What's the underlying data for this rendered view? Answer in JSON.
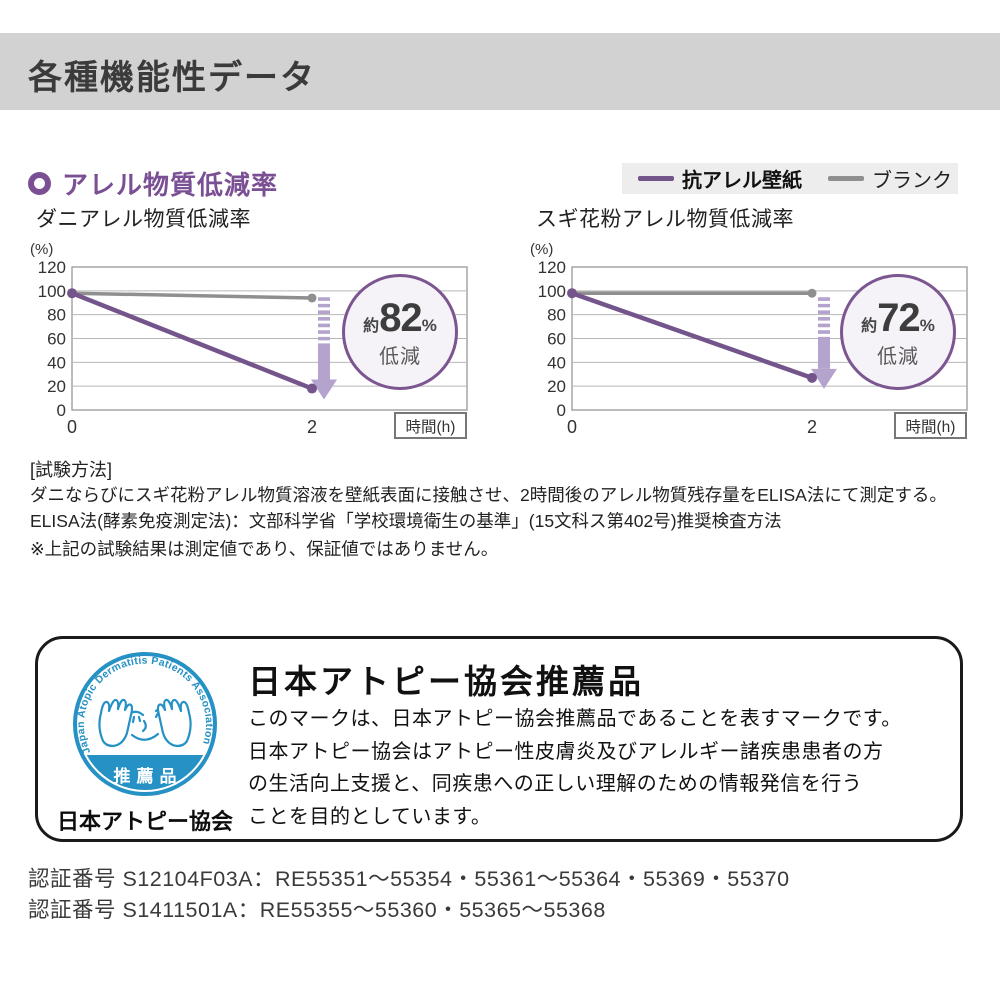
{
  "header": {
    "title": "各種機能性データ"
  },
  "section": {
    "title": "アレル物質低減率",
    "legend": {
      "items": [
        {
          "label": "抗アレル壁紙",
          "color": "#74558b"
        },
        {
          "label": "ブランク",
          "color": "#8f8f8f"
        }
      ]
    }
  },
  "chart_data": [
    {
      "type": "line",
      "title": "ダニアレル物質低減率",
      "ylabel": "(%)",
      "xlabel": "時間(h)",
      "ylim": [
        0,
        120
      ],
      "yticks": [
        120,
        100,
        80,
        60,
        40,
        20,
        0
      ],
      "xticks": [
        0,
        2
      ],
      "grid": true,
      "series": [
        {
          "name": "抗アレル壁紙",
          "color": "#74558b",
          "x": [
            0,
            2
          ],
          "values": [
            98,
            18
          ]
        },
        {
          "name": "ブランク",
          "color": "#8f8f8f",
          "x": [
            0,
            2
          ],
          "values": [
            98,
            94
          ]
        }
      ],
      "badge": {
        "prefix": "約",
        "value": "82",
        "unit": "%",
        "caption": "低減"
      }
    },
    {
      "type": "line",
      "title": "スギ花粉アレル物質低減率",
      "ylabel": "(%)",
      "xlabel": "時間(h)",
      "ylim": [
        0,
        120
      ],
      "yticks": [
        120,
        100,
        80,
        60,
        40,
        20,
        0
      ],
      "xticks": [
        0,
        2
      ],
      "grid": true,
      "series": [
        {
          "name": "抗アレル壁紙",
          "color": "#74558b",
          "x": [
            0,
            2
          ],
          "values": [
            98,
            27
          ]
        },
        {
          "name": "ブランク",
          "color": "#8f8f8f",
          "x": [
            0,
            2
          ],
          "values": [
            98,
            98
          ]
        }
      ],
      "badge": {
        "prefix": "約",
        "value": "72",
        "unit": "%",
        "caption": "低減"
      }
    }
  ],
  "method": {
    "heading": "[試験方法]",
    "lines": [
      "ダニならびにスギ花粉アレル物質溶液を壁紙表面に接触させ、2時間後のアレル物質残存量をELISA法にて測定する。",
      "ELISA法(酵素免疫測定法)：文部科学省「学校環境衛生の基準」(15文科ス第402号)推奨検査方法"
    ],
    "note": "※上記の試験結果は測定値であり、保証値ではありません。"
  },
  "association": {
    "logo": {
      "ring_text": "Japan Atopic Dermatitis Patients Association",
      "band_text": "推薦品",
      "name": "日本アトピー協会",
      "color": "#2591c4"
    },
    "title": "日本アトピー協会推薦品",
    "body_lines": [
      "このマークは、日本アトピー協会推薦品であることを表すマークです。",
      "日本アトピー協会はアトピー性皮膚炎及びアレルギー諸疾患患者の方",
      "の生活向上支援と、同疾患への正しい理解のための情報発信を行う",
      "ことを目的としています。"
    ]
  },
  "certifications": [
    "認証番号 S12104F03A：RE55351～55354・55361～55364・55369・55370",
    "認証番号 S1411501A：RE55355～55360・55365～55368"
  ]
}
